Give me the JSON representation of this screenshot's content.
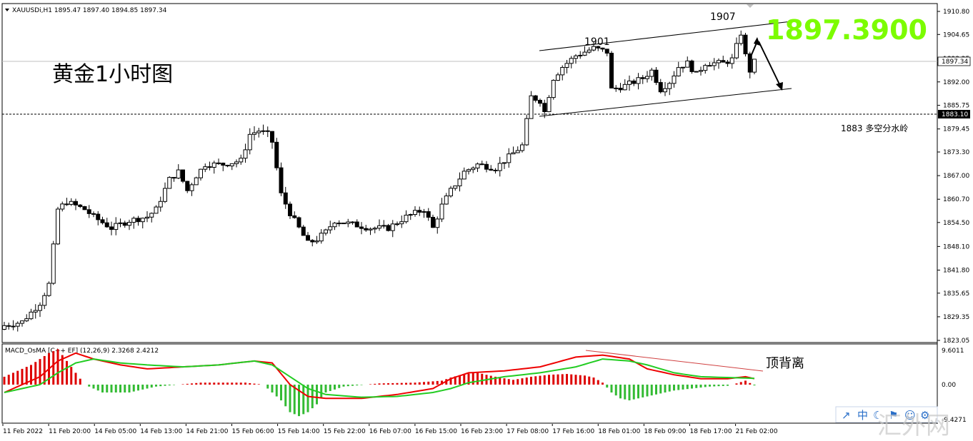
{
  "header": {
    "symbol_line": "XAUUSDi,H1  1895.47 1897.40 1894.85 1897.34"
  },
  "overlay": {
    "title": "黄金1小时图",
    "big_price": "1897.3900",
    "peak_1907": "1907",
    "peak_1901": "1901",
    "watershed_note": "1883 多空分水岭",
    "divergence_note": "顶背离",
    "watermark": "汇外网"
  },
  "price_boxes": {
    "current": "1897.34",
    "level": "1883.10"
  },
  "macd": {
    "label": "MACD_OsMA [C++ EF] (12,26,9) 2.3268 2.4212",
    "top_tick": "9.6011",
    "zero_tick": "0.00",
    "bottom_tick": "-9.4271"
  },
  "toolbar": {
    "items": [
      "↗",
      "中",
      "☾",
      "⚑",
      "☺",
      "⚙"
    ]
  },
  "colors": {
    "macd_line": "#ee0000",
    "signal_line": "#22cc22",
    "hist_pos": "#dd0000",
    "hist_neg": "#33bb33",
    "big_price": "#7CFC00"
  },
  "chart_data": {
    "type": "candlestick",
    "y_ticks": [
      "1910.80",
      "1904.65",
      "1898.25",
      "1892.00",
      "1885.75",
      "1879.45",
      "1873.30",
      "1867.00",
      "1860.70",
      "1854.50",
      "1848.10",
      "1841.80",
      "1835.65",
      "1829.35",
      "1823.05"
    ],
    "ylim": [
      1823.05,
      1910.8
    ],
    "x_labels": [
      "11 Feb 2022",
      "11 Feb 20:00",
      "14 Feb 05:00",
      "14 Feb 13:00",
      "14 Feb 21:00",
      "15 Feb 06:00",
      "15 Feb 14:00",
      "15 Feb 22:00",
      "16 Feb 07:00",
      "16 Feb 15:00",
      "16 Feb 23:00",
      "17 Feb 08:00",
      "17 Feb 16:00",
      "18 Feb 01:00",
      "18 Feb 09:00",
      "18 Feb 17:00",
      "21 Feb 02:00"
    ],
    "current_price": 1897.34,
    "level": 1883.1,
    "close_path": [
      [
        0,
        1827
      ],
      [
        4,
        1828
      ],
      [
        8,
        1833
      ],
      [
        10,
        1838
      ],
      [
        12,
        1858
      ],
      [
        14,
        1860
      ],
      [
        18,
        1858
      ],
      [
        20,
        1856
      ],
      [
        24,
        1853
      ],
      [
        28,
        1855
      ],
      [
        32,
        1856
      ],
      [
        34,
        1858
      ],
      [
        37,
        1866
      ],
      [
        39,
        1868
      ],
      [
        41,
        1863
      ],
      [
        43,
        1867
      ],
      [
        45,
        1870
      ],
      [
        49,
        1870
      ],
      [
        53,
        1871
      ],
      [
        55,
        1878
      ],
      [
        57,
        1879
      ],
      [
        59,
        1878
      ],
      [
        60,
        1876
      ],
      [
        62,
        1862
      ],
      [
        64,
        1857
      ],
      [
        66,
        1853
      ],
      [
        68,
        1849
      ],
      [
        70,
        1850
      ],
      [
        72,
        1852
      ],
      [
        74,
        1855
      ],
      [
        78,
        1854
      ],
      [
        82,
        1853
      ],
      [
        86,
        1853
      ],
      [
        90,
        1856
      ],
      [
        94,
        1858
      ],
      [
        96,
        1853
      ],
      [
        98,
        1859
      ],
      [
        100,
        1863
      ],
      [
        103,
        1868
      ],
      [
        106,
        1870
      ],
      [
        110,
        1869
      ],
      [
        113,
        1872
      ],
      [
        116,
        1875
      ],
      [
        118,
        1888
      ],
      [
        120,
        1887
      ],
      [
        121,
        1884
      ],
      [
        123,
        1893
      ],
      [
        125,
        1896
      ],
      [
        128,
        1899
      ],
      [
        132,
        1901
      ],
      [
        135,
        1900
      ],
      [
        136,
        1890
      ],
      [
        139,
        1891
      ],
      [
        143,
        1893
      ],
      [
        145,
        1895
      ],
      [
        147,
        1890
      ],
      [
        149,
        1892
      ],
      [
        151,
        1896
      ],
      [
        153,
        1897
      ],
      [
        155,
        1894
      ],
      [
        157,
        1897
      ],
      [
        159,
        1897
      ],
      [
        161,
        1897
      ],
      [
        163,
        1898
      ],
      [
        165,
        1905
      ],
      [
        166,
        1899
      ],
      [
        167,
        1895
      ],
      [
        168,
        1897.34
      ]
    ],
    "macd_ylim": [
      -9.4271,
      9.6011
    ],
    "macd_path": [
      [
        0,
        -2
      ],
      [
        8,
        2
      ],
      [
        12,
        6
      ],
      [
        16,
        8
      ],
      [
        20,
        6.5
      ],
      [
        26,
        5
      ],
      [
        32,
        4
      ],
      [
        40,
        4.5
      ],
      [
        48,
        5
      ],
      [
        56,
        6
      ],
      [
        60,
        5.5
      ],
      [
        64,
        0
      ],
      [
        68,
        -3
      ],
      [
        72,
        -3.5
      ],
      [
        80,
        -3.5
      ],
      [
        88,
        -2.5
      ],
      [
        96,
        -1
      ],
      [
        100,
        1.5
      ],
      [
        104,
        3
      ],
      [
        112,
        3.5
      ],
      [
        120,
        4.5
      ],
      [
        128,
        7
      ],
      [
        134,
        7.5
      ],
      [
        140,
        6.5
      ],
      [
        144,
        4
      ],
      [
        150,
        2.5
      ],
      [
        156,
        1.5
      ],
      [
        162,
        1.5
      ],
      [
        166,
        2
      ],
      [
        168,
        1.5
      ]
    ],
    "signal_path": [
      [
        0,
        -2
      ],
      [
        8,
        0
      ],
      [
        12,
        3
      ],
      [
        16,
        5.5
      ],
      [
        20,
        6.5
      ],
      [
        26,
        5.5
      ],
      [
        32,
        5
      ],
      [
        40,
        4.5
      ],
      [
        48,
        5
      ],
      [
        56,
        6
      ],
      [
        60,
        5
      ],
      [
        64,
        2
      ],
      [
        68,
        -1
      ],
      [
        72,
        -2.5
      ],
      [
        80,
        -3.2
      ],
      [
        88,
        -3
      ],
      [
        96,
        -2
      ],
      [
        100,
        -1
      ],
      [
        104,
        0.5
      ],
      [
        112,
        2
      ],
      [
        120,
        3
      ],
      [
        128,
        4.5
      ],
      [
        134,
        6.5
      ],
      [
        140,
        6
      ],
      [
        144,
        5
      ],
      [
        150,
        3
      ],
      [
        156,
        2
      ],
      [
        162,
        1.8
      ],
      [
        168,
        1.6
      ]
    ],
    "hist_envelope": [
      [
        0,
        2
      ],
      [
        6,
        5
      ],
      [
        10,
        8
      ],
      [
        12,
        9
      ],
      [
        14,
        6
      ],
      [
        16,
        3
      ],
      [
        18,
        0
      ],
      [
        22,
        -2
      ],
      [
        28,
        -2
      ],
      [
        34,
        -0.5
      ],
      [
        44,
        0.5
      ],
      [
        54,
        0.5
      ],
      [
        58,
        0
      ],
      [
        60,
        -2
      ],
      [
        62,
        -4
      ],
      [
        64,
        -7
      ],
      [
        66,
        -8
      ],
      [
        68,
        -7
      ],
      [
        70,
        -5
      ],
      [
        72,
        -2
      ],
      [
        76,
        -0.5
      ],
      [
        84,
        0.3
      ],
      [
        92,
        0.5
      ],
      [
        98,
        1
      ],
      [
        100,
        1.8
      ],
      [
        103,
        2.7
      ],
      [
        106,
        3
      ],
      [
        110,
        2
      ],
      [
        114,
        1.2
      ],
      [
        118,
        2
      ],
      [
        122,
        2.5
      ],
      [
        126,
        2.7
      ],
      [
        130,
        2.3
      ],
      [
        132,
        1.8
      ],
      [
        134,
        0.5
      ],
      [
        136,
        -2
      ],
      [
        138,
        -3.5
      ],
      [
        140,
        -4
      ],
      [
        142,
        -3.5
      ],
      [
        146,
        -2.5
      ],
      [
        150,
        -1.5
      ],
      [
        154,
        -1
      ],
      [
        158,
        -0.5
      ],
      [
        162,
        -0.3
      ],
      [
        164,
        0.3
      ],
      [
        166,
        1
      ],
      [
        168,
        -0.2
      ]
    ]
  }
}
